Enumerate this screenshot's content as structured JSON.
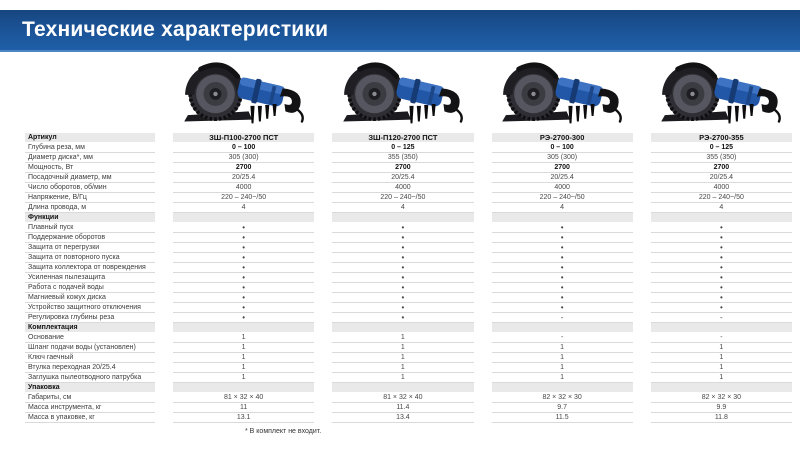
{
  "title": "Технические характеристики",
  "footnote": "* В комплект не входит.",
  "colors": {
    "header_blue_top": "#16467f",
    "header_blue_bottom": "#1e5fa7",
    "header_highlight": "#4d86c2",
    "section_gray": "#e9e9e9",
    "row_border": "#dadada",
    "product_body_blue": "#2257a8",
    "text": "#3c3c3c"
  },
  "table": {
    "article_label": "Артикул",
    "products": [
      "ЗШ-П100-2700 ПСТ",
      "ЗШ-П120-2700 ПСТ",
      "РЭ-2700-300",
      "РЭ-2700-355"
    ],
    "rows": [
      {
        "type": "spec",
        "label": "Глубина реза, мм",
        "bold": true,
        "values": [
          "0 – 100",
          "0 – 125",
          "0 – 100",
          "0 – 125"
        ]
      },
      {
        "type": "spec",
        "label": "Диаметр диска*, мм",
        "values": [
          "305 (300)",
          "355 (350)",
          "305 (300)",
          "355 (350)"
        ]
      },
      {
        "type": "spec",
        "label": "Мощность, Вт",
        "bold": true,
        "values": [
          "2700",
          "2700",
          "2700",
          "2700"
        ]
      },
      {
        "type": "spec",
        "label": "Посадочный диаметр, мм",
        "values": [
          "20/25.4",
          "20/25.4",
          "20/25.4",
          "20/25.4"
        ]
      },
      {
        "type": "spec",
        "label": "Число оборотов, об/мин",
        "values": [
          "4000",
          "4000",
          "4000",
          "4000"
        ]
      },
      {
        "type": "spec",
        "label": "Напряжение, В/Гц",
        "values": [
          "220 – 240~/50",
          "220 – 240~/50",
          "220 – 240~/50",
          "220 – 240~/50"
        ]
      },
      {
        "type": "spec",
        "label": "Длина провода, м",
        "values": [
          "4",
          "4",
          "4",
          "4"
        ]
      },
      {
        "type": "section",
        "label": "Функции"
      },
      {
        "type": "spec",
        "label": "Плавный пуск",
        "dot": true,
        "values": [
          "•",
          "•",
          "•",
          "•"
        ]
      },
      {
        "type": "spec",
        "label": "Поддержание оборотов",
        "dot": true,
        "values": [
          "•",
          "•",
          "•",
          "•"
        ]
      },
      {
        "type": "spec",
        "label": "Защита от перегрузки",
        "dot": true,
        "values": [
          "•",
          "•",
          "•",
          "•"
        ]
      },
      {
        "type": "spec",
        "label": "Защита от повторного пуска",
        "dot": true,
        "values": [
          "•",
          "•",
          "•",
          "•"
        ]
      },
      {
        "type": "spec",
        "label": "Защита коллектора от повреждения",
        "dot": true,
        "values": [
          "•",
          "•",
          "•",
          "•"
        ]
      },
      {
        "type": "spec",
        "label": "Усиленная пылезащита",
        "dot": true,
        "values": [
          "•",
          "•",
          "•",
          "•"
        ]
      },
      {
        "type": "spec",
        "label": "Работа с подачей воды",
        "dot": true,
        "values": [
          "•",
          "•",
          "•",
          "•"
        ]
      },
      {
        "type": "spec",
        "label": "Магниевый кожух диска",
        "dot": true,
        "values": [
          "•",
          "•",
          "•",
          "•"
        ]
      },
      {
        "type": "spec",
        "label": "Устройство защитного отключения",
        "dot": true,
        "values": [
          "•",
          "•",
          "•",
          "•"
        ]
      },
      {
        "type": "spec",
        "label": "Регулировка глубины реза",
        "dot": true,
        "values": [
          "•",
          "•",
          "-",
          "-"
        ]
      },
      {
        "type": "section",
        "label": "Комплектация"
      },
      {
        "type": "spec",
        "label": "Основание",
        "values": [
          "1",
          "1",
          "-",
          "-"
        ]
      },
      {
        "type": "spec",
        "label": "Шланг подачи воды (установлен)",
        "values": [
          "1",
          "1",
          "1",
          "1"
        ]
      },
      {
        "type": "spec",
        "label": "Ключ гаечный",
        "values": [
          "1",
          "1",
          "1",
          "1"
        ]
      },
      {
        "type": "spec",
        "label": "Втулка переходная 20/25.4",
        "values": [
          "1",
          "1",
          "1",
          "1"
        ]
      },
      {
        "type": "spec",
        "label": "Заглушка пылеотводного патрубка",
        "values": [
          "1",
          "1",
          "1",
          "1"
        ]
      },
      {
        "type": "section",
        "label": "Упаковка"
      },
      {
        "type": "spec",
        "label": "Габариты, см",
        "values": [
          "81 × 32 × 40",
          "81 × 32 × 40",
          "82 × 32 × 30",
          "82 × 32 × 30"
        ]
      },
      {
        "type": "spec",
        "label": "Масса инструмента, кг",
        "values": [
          "11",
          "11.4",
          "9.7",
          "9.9"
        ]
      },
      {
        "type": "spec",
        "label": "Масса в упаковке, кг",
        "values": [
          "13.1",
          "13.4",
          "11.5",
          "11.8"
        ]
      }
    ]
  }
}
